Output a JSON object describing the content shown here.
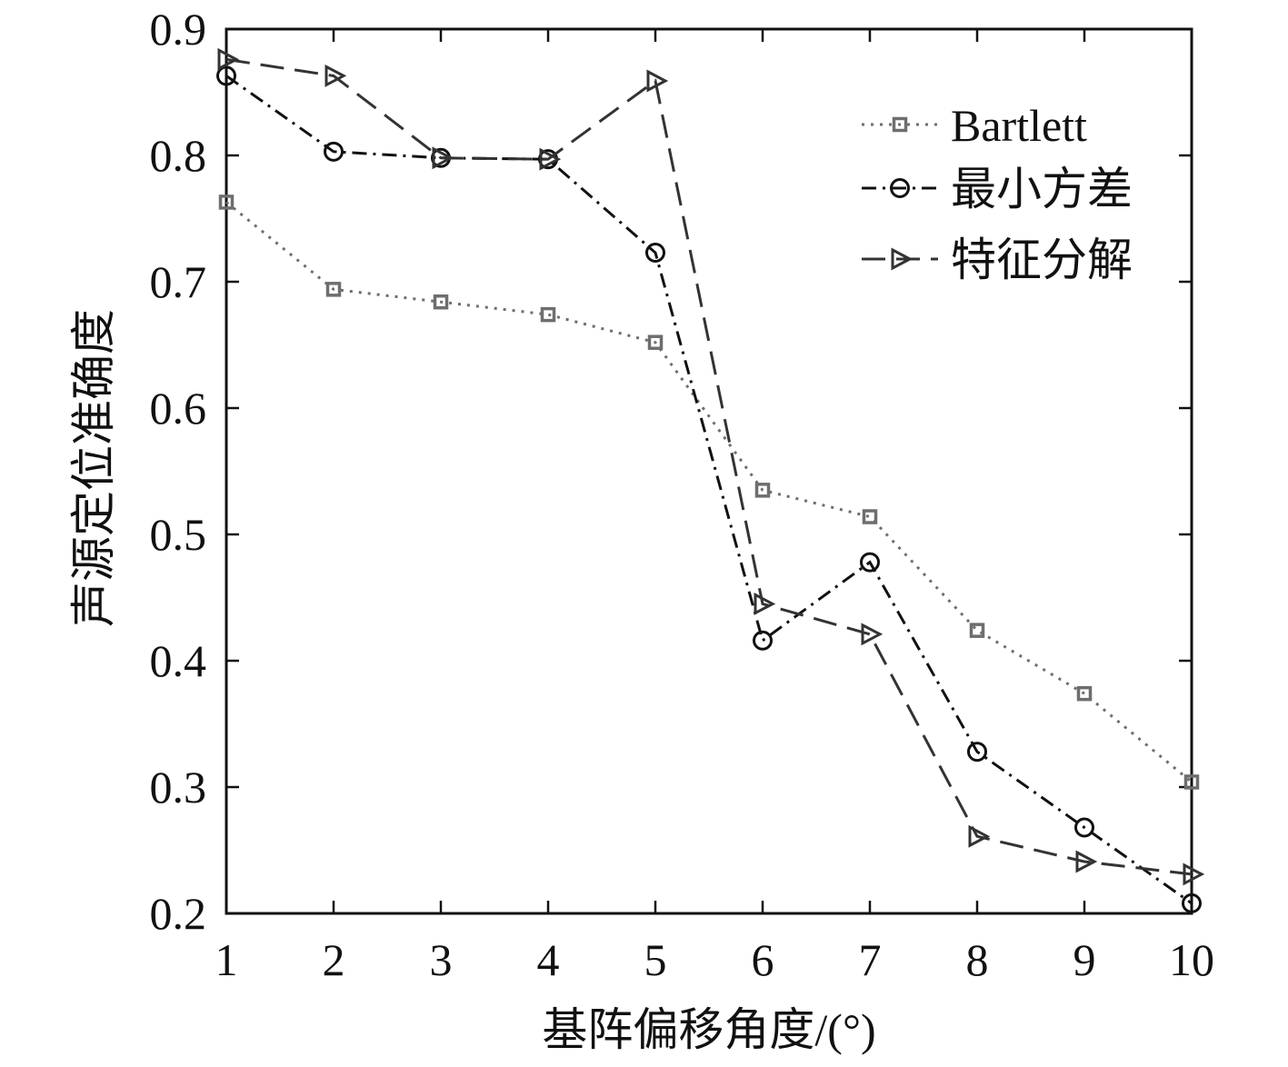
{
  "chart_data": {
    "type": "line",
    "title": "",
    "xlabel": "基阵偏移角度/(°)",
    "ylabel": "声源定位准确度",
    "x": [
      1,
      2,
      3,
      4,
      5,
      6,
      7,
      8,
      9,
      10
    ],
    "xlim": [
      1,
      10
    ],
    "ylim": [
      0.2,
      0.9
    ],
    "xticks": [
      "1",
      "2",
      "3",
      "4",
      "5",
      "6",
      "7",
      "8",
      "9",
      "10"
    ],
    "yticks": [
      "0.2",
      "0.3",
      "0.4",
      "0.5",
      "0.6",
      "0.7",
      "0.8",
      "0.9"
    ],
    "grid": false,
    "legend_position": "top-right",
    "series": [
      {
        "name": "Bartlett",
        "values": [
          0.763,
          0.694,
          0.684,
          0.674,
          0.652,
          0.535,
          0.514,
          0.424,
          0.374,
          0.304
        ],
        "color": "#6e6e6e",
        "line_style": "dotted",
        "marker": "square"
      },
      {
        "name": "最小方差",
        "values": [
          0.863,
          0.803,
          0.798,
          0.797,
          0.723,
          0.416,
          0.478,
          0.328,
          0.268,
          0.208
        ],
        "color": "#111111",
        "line_style": "dash-dot",
        "marker": "circle"
      },
      {
        "name": "特征分解",
        "values": [
          0.876,
          0.863,
          0.798,
          0.797,
          0.859,
          0.445,
          0.421,
          0.261,
          0.241,
          0.231
        ],
        "color": "#333333",
        "line_style": "dashed",
        "marker": "triangle-right"
      }
    ]
  }
}
